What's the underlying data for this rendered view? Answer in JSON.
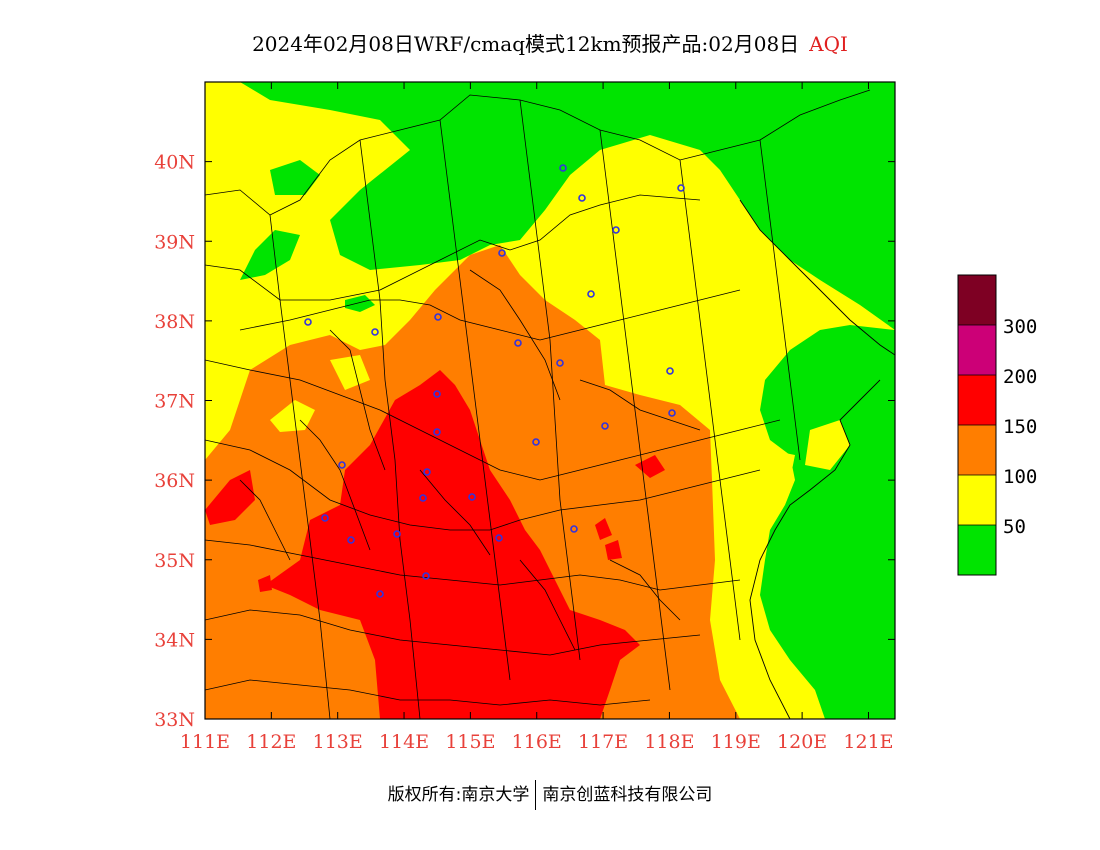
{
  "title": {
    "main": "2024年02月08日WRF/cmaq模式12km预报产品:02月08日",
    "tag": "AQI"
  },
  "axes": {
    "lat_labels": [
      "33N",
      "34N",
      "35N",
      "36N",
      "37N",
      "38N",
      "39N",
      "40N"
    ],
    "lon_labels": [
      "111E",
      "112E",
      "113E",
      "114E",
      "115E",
      "116E",
      "117E",
      "118E",
      "119E",
      "120E",
      "121E"
    ],
    "lat_range": [
      33,
      41
    ],
    "lon_range": [
      111,
      121.4
    ]
  },
  "legend": {
    "labels": [
      "50",
      "100",
      "150",
      "200",
      "300"
    ],
    "colors": {
      "good": "#00e400",
      "moderate": "#ffff00",
      "usg": "#ff7e00",
      "unhealthy": "#ff0000",
      "very_unhealthy": "#cc0077",
      "hazardous": "#7e0023"
    }
  },
  "copyright": {
    "left": "版权所有:南京大学",
    "right": "南京创蓝科技有限公司"
  }
}
